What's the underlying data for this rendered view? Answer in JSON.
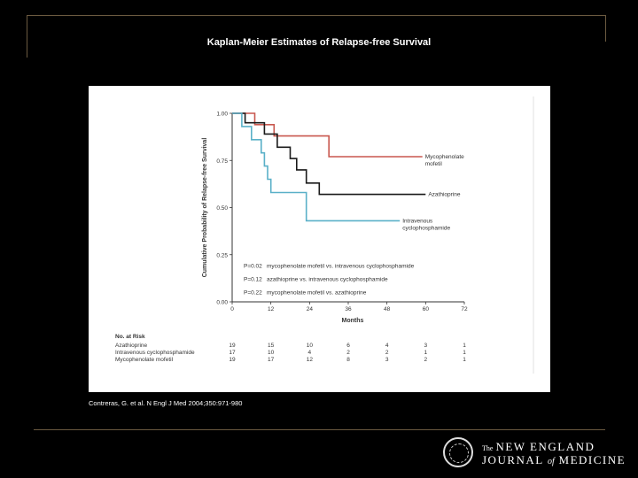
{
  "slide": {
    "title": "Kaplan-Meier Estimates of Relapse-free Survival",
    "citation": "Contreras, G. et al. N Engl J Med 2004;350:971-980"
  },
  "logo": {
    "the": "The",
    "line1": "NEW ENGLAND",
    "line2a": "JOURNAL",
    "line2b": "of",
    "line2c": "MEDICINE"
  },
  "colors": {
    "mycophenolate": "#c8574e",
    "azathioprine": "#1a1a1a",
    "cyclophosphamide": "#5ab0c8",
    "axis": "#333333"
  },
  "chart_data": {
    "type": "line",
    "step": true,
    "title": "",
    "xlabel": "Months",
    "ylabel": "Cumulative Probability of Relapse-free Survival",
    "xlim": [
      0,
      72
    ],
    "ylim": [
      0,
      1
    ],
    "x_ticks": [
      "0",
      "12",
      "24",
      "36",
      "48",
      "60",
      "72"
    ],
    "x_tick_values": [
      0,
      12,
      24,
      36,
      48,
      60,
      72
    ],
    "y_ticks": [
      "0.00",
      "0.25",
      "0.50",
      "0.75",
      "1.00"
    ],
    "y_tick_values": [
      0,
      0.25,
      0.5,
      0.75,
      1.0
    ],
    "series": [
      {
        "name": "Mycophenolate mofetil",
        "label_lines": [
          "Mycophenolate",
          "mofetil"
        ],
        "label_y": 0.77,
        "color_key": "mycophenolate",
        "x": [
          0,
          7,
          7,
          13,
          13,
          30,
          30,
          59
        ],
        "y": [
          1.0,
          1.0,
          0.94,
          0.94,
          0.88,
          0.88,
          0.77,
          0.77
        ]
      },
      {
        "name": "Azathioprine",
        "label_lines": [
          "Azathioprine"
        ],
        "label_y": 0.57,
        "color_key": "azathioprine",
        "x": [
          0,
          4,
          4,
          10,
          10,
          14,
          14,
          18,
          18,
          20,
          20,
          23,
          23,
          27,
          27,
          60
        ],
        "y": [
          1.0,
          1.0,
          0.95,
          0.95,
          0.89,
          0.89,
          0.82,
          0.82,
          0.76,
          0.76,
          0.7,
          0.7,
          0.63,
          0.63,
          0.57,
          0.57
        ]
      },
      {
        "name": "Intravenous cyclophosphamide",
        "label_lines": [
          "Intravenous",
          "cyclophosphamide"
        ],
        "label_y": 0.43,
        "color_key": "cyclophosphamide",
        "x": [
          0,
          3,
          3,
          6,
          6,
          9,
          9,
          10,
          10,
          11,
          11,
          12,
          12,
          23,
          23,
          52
        ],
        "y": [
          1.0,
          1.0,
          0.93,
          0.93,
          0.86,
          0.86,
          0.79,
          0.79,
          0.72,
          0.72,
          0.65,
          0.65,
          0.58,
          0.58,
          0.43,
          0.43
        ]
      }
    ],
    "annotations": [
      {
        "p": "P=0.02",
        "text": "mycophenolate mofetil vs. intravenous cyclophosphamide",
        "y": 0.19
      },
      {
        "p": "P=0.12",
        "text": "azathioprine vs. intravenous cyclophosphamide",
        "y": 0.12
      },
      {
        "p": "P=0.22",
        "text": "mycophenolate mofetil vs. azathioprine",
        "y": 0.05
      }
    ],
    "risk_table": {
      "title": "No. at Risk",
      "rows": [
        {
          "label": "Azathioprine",
          "values": [
            "19",
            "15",
            "10",
            "6",
            "4",
            "3",
            "1"
          ]
        },
        {
          "label": "Intravenous cyclophosphamide",
          "values": [
            "17",
            "10",
            "4",
            "2",
            "2",
            "1",
            "1"
          ]
        },
        {
          "label": "Mycophenolate mofetil",
          "values": [
            "19",
            "17",
            "12",
            "8",
            "3",
            "2",
            "1"
          ]
        }
      ]
    }
  }
}
